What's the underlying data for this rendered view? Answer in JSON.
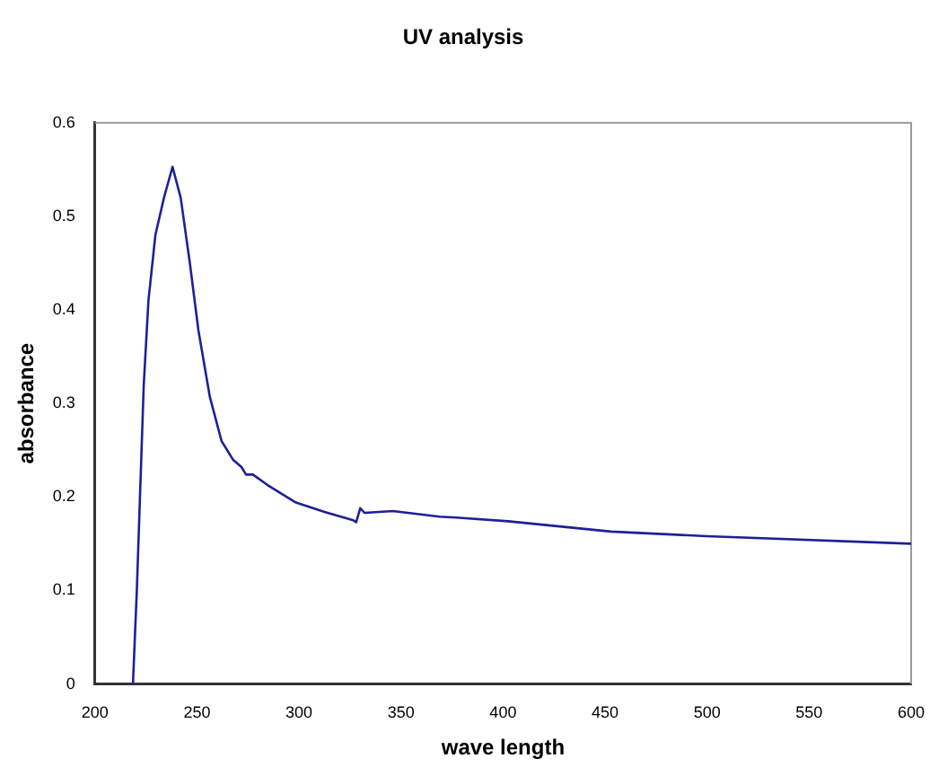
{
  "chart_data": {
    "type": "line",
    "title": "UV analysis",
    "xlabel": "wave length",
    "ylabel": "absorbance",
    "xlim": [
      200,
      600
    ],
    "xticks": [
      200,
      250,
      300,
      350,
      400,
      450,
      500,
      550,
      600
    ],
    "ylim": [
      0,
      0.6
    ],
    "yticks": [
      0,
      0.1,
      0.2,
      0.3,
      0.4,
      0.5,
      0.6
    ],
    "grid": false,
    "legend": false,
    "marker": "none",
    "line_style": "solid",
    "series": [
      {
        "color": "#1f1f99",
        "x": [
          218.6,
          220.5,
          223.9,
          226.2,
          229.6,
          233.8,
          238.0,
          242.0,
          246.5,
          250.7,
          256.3,
          262.0,
          267.6,
          271.8,
          274.0,
          277.4,
          284.4,
          298.5,
          312.5,
          326.6,
          328.0,
          330.0,
          332.2,
          346.0,
          368.8,
          377.0,
          402.5,
          453.0,
          500.0,
          600.0
        ],
        "values": [
          0,
          0.1,
          0.32,
          0.41,
          0.48,
          0.52,
          0.553,
          0.52,
          0.45,
          0.378,
          0.307,
          0.26,
          0.24,
          0.232,
          0.224,
          0.224,
          0.213,
          0.194,
          0.184,
          0.175,
          0.173,
          0.188,
          0.183,
          0.185,
          0.179,
          0.178,
          0.174,
          0.163,
          0.158,
          0.15
        ]
      }
    ]
  }
}
